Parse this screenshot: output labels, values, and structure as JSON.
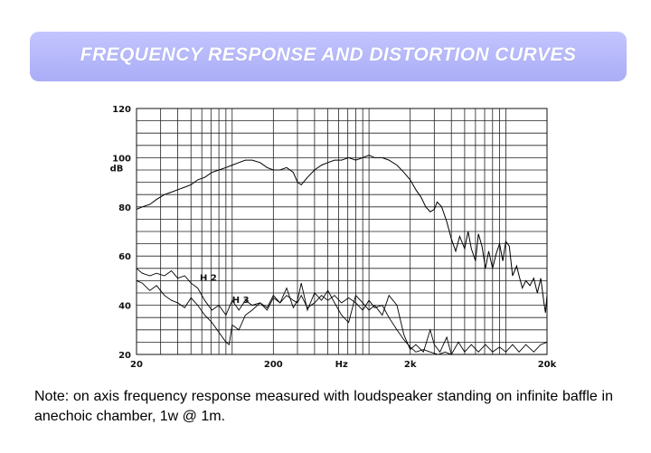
{
  "banner": {
    "title": "FREQUENCY RESPONSE AND DISTORTION CURVES"
  },
  "note": {
    "text": "Note: on axis frequency response measured with loudspeaker standing on infinite baffle in anechoic chamber, 1w @ 1m."
  },
  "chart_data": {
    "type": "line",
    "title": "",
    "xlabel": "Hz",
    "ylabel": "dB",
    "x_scale": "log",
    "xlim": [
      20,
      20000
    ],
    "ylim": [
      20,
      120
    ],
    "x_ticks": [
      {
        "value": 20,
        "label": "20"
      },
      {
        "value": 200,
        "label": "200"
      },
      {
        "value": 2000,
        "label": "2k"
      },
      {
        "value": 20000,
        "label": "20k"
      }
    ],
    "y_ticks": [
      20,
      40,
      60,
      80,
      100,
      120
    ],
    "grid": true,
    "series": [
      {
        "name": "",
        "values": [
          [
            20,
            79
          ],
          [
            22,
            80
          ],
          [
            25,
            81
          ],
          [
            28,
            83
          ],
          [
            32,
            85
          ],
          [
            36,
            86
          ],
          [
            40,
            87
          ],
          [
            45,
            88
          ],
          [
            50,
            89
          ],
          [
            56,
            91
          ],
          [
            63,
            92
          ],
          [
            71,
            94
          ],
          [
            80,
            95
          ],
          [
            90,
            96
          ],
          [
            100,
            97
          ],
          [
            112,
            98
          ],
          [
            125,
            99
          ],
          [
            140,
            99
          ],
          [
            160,
            98
          ],
          [
            180,
            96
          ],
          [
            200,
            95
          ],
          [
            224,
            95
          ],
          [
            250,
            96
          ],
          [
            280,
            94
          ],
          [
            300,
            90
          ],
          [
            320,
            89
          ],
          [
            355,
            92
          ],
          [
            400,
            95
          ],
          [
            450,
            97
          ],
          [
            500,
            98
          ],
          [
            560,
            99
          ],
          [
            630,
            99
          ],
          [
            710,
            100
          ],
          [
            800,
            99
          ],
          [
            900,
            100
          ],
          [
            1000,
            101
          ],
          [
            1100,
            100
          ],
          [
            1250,
            100
          ],
          [
            1400,
            99
          ],
          [
            1600,
            97
          ],
          [
            1800,
            94
          ],
          [
            2000,
            91
          ],
          [
            2200,
            87
          ],
          [
            2400,
            84
          ],
          [
            2600,
            80
          ],
          [
            2800,
            78
          ],
          [
            3000,
            79
          ],
          [
            3150,
            82
          ],
          [
            3400,
            80
          ],
          [
            3700,
            74
          ],
          [
            4000,
            67
          ],
          [
            4300,
            62
          ],
          [
            4600,
            68
          ],
          [
            5000,
            63
          ],
          [
            5300,
            70
          ],
          [
            5600,
            63
          ],
          [
            6000,
            58
          ],
          [
            6300,
            69
          ],
          [
            6700,
            64
          ],
          [
            7100,
            55
          ],
          [
            7500,
            62
          ],
          [
            8000,
            55
          ],
          [
            8500,
            61
          ],
          [
            9000,
            65
          ],
          [
            9500,
            58
          ],
          [
            10000,
            66
          ],
          [
            10600,
            64
          ],
          [
            11200,
            52
          ],
          [
            12000,
            56
          ],
          [
            12500,
            52
          ],
          [
            13200,
            47
          ],
          [
            14000,
            50
          ],
          [
            15000,
            48
          ],
          [
            16000,
            51
          ],
          [
            17000,
            45
          ],
          [
            18000,
            51
          ],
          [
            19000,
            41
          ],
          [
            19500,
            37
          ],
          [
            20000,
            44
          ]
        ]
      },
      {
        "name": "H2",
        "values": [
          [
            20,
            55
          ],
          [
            22,
            53
          ],
          [
            25,
            52
          ],
          [
            28,
            53
          ],
          [
            32,
            52
          ],
          [
            36,
            54
          ],
          [
            40,
            51
          ],
          [
            45,
            52
          ],
          [
            50,
            49
          ],
          [
            56,
            47
          ],
          [
            63,
            42
          ],
          [
            71,
            38
          ],
          [
            80,
            40
          ],
          [
            90,
            36
          ],
          [
            100,
            42
          ],
          [
            112,
            38
          ],
          [
            125,
            42
          ],
          [
            140,
            40
          ],
          [
            160,
            41
          ],
          [
            180,
            38
          ],
          [
            200,
            43
          ],
          [
            224,
            41
          ],
          [
            250,
            44
          ],
          [
            280,
            42
          ],
          [
            300,
            41
          ],
          [
            320,
            44
          ],
          [
            355,
            39
          ],
          [
            400,
            41
          ],
          [
            450,
            44
          ],
          [
            500,
            42
          ],
          [
            560,
            44
          ],
          [
            630,
            41
          ],
          [
            710,
            43
          ],
          [
            800,
            41
          ],
          [
            900,
            38
          ],
          [
            1000,
            42
          ],
          [
            1100,
            39
          ],
          [
            1250,
            40
          ],
          [
            1400,
            35
          ],
          [
            1600,
            30
          ],
          [
            1800,
            26
          ],
          [
            2000,
            23
          ],
          [
            2200,
            21
          ],
          [
            2500,
            22
          ],
          [
            2800,
            21
          ],
          [
            3200,
            20
          ],
          [
            3600,
            21
          ],
          [
            4000,
            20
          ],
          [
            5000,
            20
          ],
          [
            10000,
            20
          ],
          [
            20000,
            20
          ]
        ]
      },
      {
        "name": "H3",
        "values": [
          [
            20,
            50
          ],
          [
            22,
            49
          ],
          [
            25,
            46
          ],
          [
            28,
            48
          ],
          [
            32,
            44
          ],
          [
            36,
            42
          ],
          [
            40,
            41
          ],
          [
            45,
            39
          ],
          [
            50,
            43
          ],
          [
            56,
            40
          ],
          [
            63,
            36
          ],
          [
            71,
            33
          ],
          [
            80,
            29
          ],
          [
            90,
            25
          ],
          [
            95,
            24
          ],
          [
            100,
            32
          ],
          [
            112,
            30
          ],
          [
            125,
            36
          ],
          [
            140,
            38
          ],
          [
            160,
            41
          ],
          [
            180,
            39
          ],
          [
            200,
            44
          ],
          [
            224,
            41
          ],
          [
            250,
            47
          ],
          [
            280,
            39
          ],
          [
            300,
            42
          ],
          [
            320,
            49
          ],
          [
            355,
            38
          ],
          [
            400,
            45
          ],
          [
            450,
            42
          ],
          [
            500,
            46
          ],
          [
            560,
            41
          ],
          [
            630,
            36
          ],
          [
            710,
            33
          ],
          [
            800,
            44
          ],
          [
            900,
            41
          ],
          [
            1000,
            38
          ],
          [
            1100,
            40
          ],
          [
            1250,
            36
          ],
          [
            1400,
            44
          ],
          [
            1600,
            40
          ],
          [
            1800,
            28
          ],
          [
            2000,
            22
          ],
          [
            2200,
            24
          ],
          [
            2500,
            21
          ],
          [
            2800,
            30
          ],
          [
            3000,
            24
          ],
          [
            3300,
            21
          ],
          [
            3700,
            27
          ],
          [
            4000,
            20
          ],
          [
            4500,
            25
          ],
          [
            5000,
            21
          ],
          [
            5600,
            24
          ],
          [
            6300,
            21
          ],
          [
            7100,
            24
          ],
          [
            8000,
            21
          ],
          [
            9000,
            23
          ],
          [
            10000,
            21
          ],
          [
            11200,
            24
          ],
          [
            12500,
            21
          ],
          [
            14000,
            24
          ],
          [
            16000,
            21
          ],
          [
            18000,
            24
          ],
          [
            20000,
            25
          ]
        ]
      }
    ],
    "annotations": [
      {
        "text": "H 2",
        "x": 58,
        "y": 50
      },
      {
        "text": "H 3",
        "x": 100,
        "y": 41
      }
    ]
  }
}
